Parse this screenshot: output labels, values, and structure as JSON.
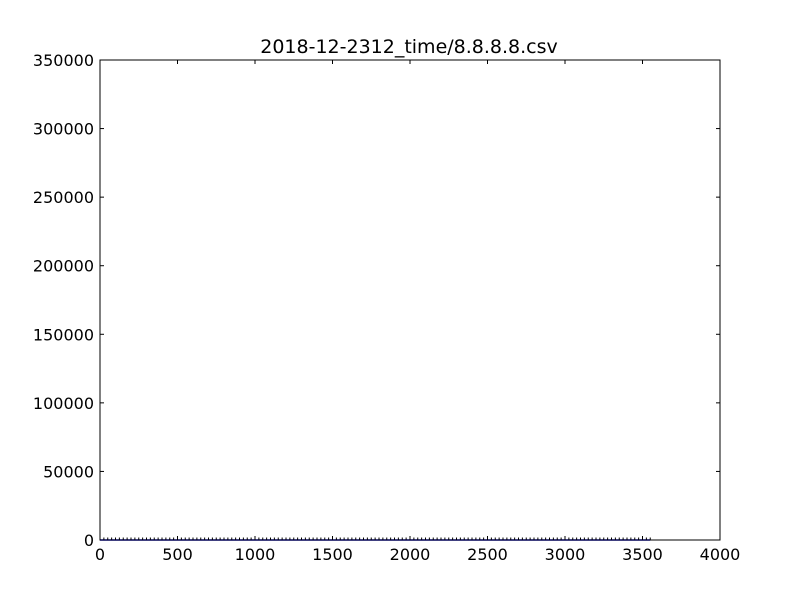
{
  "chart_data": {
    "type": "line",
    "title": "2018-12-2312_time/8.8.8.8.csv",
    "xlabel": "",
    "ylabel": "",
    "xlim": [
      0,
      4000
    ],
    "ylim": [
      0,
      350000
    ],
    "xticks": [
      0,
      500,
      1000,
      1500,
      2000,
      2500,
      3000,
      3500,
      4000
    ],
    "yticks": [
      0,
      50000,
      100000,
      150000,
      200000,
      250000,
      300000,
      350000
    ],
    "xtick_labels": [
      "0",
      "500",
      "1000",
      "1500",
      "2000",
      "2500",
      "3000",
      "3500",
      "4000"
    ],
    "ytick_labels": [
      "0",
      "50000",
      "100000",
      "150000",
      "200000",
      "250000",
      "300000",
      "350000"
    ],
    "grid": false,
    "legend": "none",
    "series": [
      {
        "color": "#0000ff",
        "x": [
          0,
          3550
        ],
        "y": [
          0,
          0
        ]
      }
    ],
    "x_tick_markers": [
      {
        "color": "#000000",
        "x": [
          0,
          25,
          50,
          75,
          100,
          125,
          150,
          175,
          200,
          225,
          250,
          275,
          300,
          325,
          350,
          375,
          400,
          425,
          450,
          475,
          500,
          525,
          550,
          575,
          600,
          625,
          650,
          675,
          700,
          725,
          750,
          775,
          800,
          825,
          850,
          875,
          900,
          925,
          950,
          975,
          1000,
          1025,
          1050,
          1075,
          1100,
          1125,
          1150,
          1175,
          1200,
          1225,
          1250,
          1275,
          1300,
          1325,
          1350,
          1375,
          1400,
          1425,
          1450,
          1475,
          1500,
          1525,
          1550,
          1575,
          1600,
          1625,
          1650,
          1675,
          1700,
          1725,
          1750,
          1775,
          1800,
          1825,
          1850,
          1875,
          1900,
          1925,
          1950,
          1975,
          2000,
          2025,
          2050,
          2075,
          2100,
          2125,
          2150,
          2175,
          2200,
          2225,
          2250,
          2275,
          2300,
          2325,
          2350,
          2375,
          2400,
          2425,
          2450,
          2475,
          2500,
          2525,
          2550,
          2575,
          2600,
          2625,
          2650,
          2675,
          2700,
          2725,
          2750,
          2775,
          2800,
          2825,
          2850,
          2875,
          2900,
          2925,
          2950,
          2975,
          3000,
          3025,
          3050,
          3075,
          3100,
          3125,
          3150,
          3175,
          3200,
          3225,
          3250,
          3275,
          3300,
          3325,
          3350,
          3375,
          3400,
          3425,
          3450,
          3475,
          3500,
          3525,
          3550
        ]
      }
    ]
  }
}
